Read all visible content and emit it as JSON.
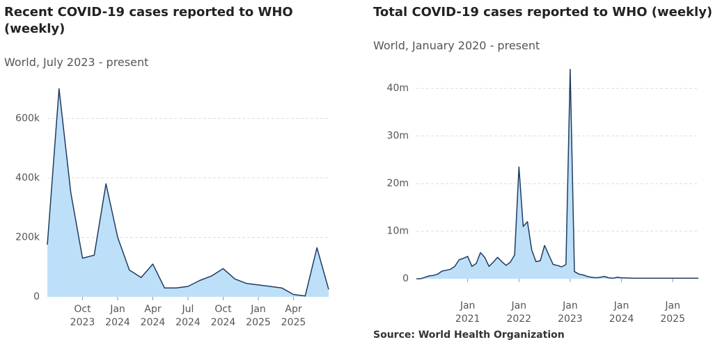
{
  "chart_data": [
    {
      "type": "area",
      "title": "Recent COVID-19 cases reported to WHO (weekly)",
      "subtitle": "World, July 2023 - present",
      "x": [
        "2023-07",
        "2023-08",
        "2023-09",
        "2023-10",
        "2023-11",
        "2023-12",
        "2024-01",
        "2024-02",
        "2024-03",
        "2024-04",
        "2024-05",
        "2024-06",
        "2024-07",
        "2024-08",
        "2024-09",
        "2024-10",
        "2024-11",
        "2024-12",
        "2025-01",
        "2025-02",
        "2025-03",
        "2025-04",
        "2025-05",
        "2025-06",
        "2025-07"
      ],
      "values": [
        175000,
        700000,
        350000,
        130000,
        140000,
        380000,
        200000,
        90000,
        65000,
        110000,
        30000,
        30000,
        35000,
        55000,
        70000,
        95000,
        60000,
        45000,
        40000,
        35000,
        30000,
        8000,
        3000,
        165000,
        25000
      ],
      "color": "#1f3a5f",
      "fill": "#bde0f8",
      "xlim": [
        "2023-07",
        "2025-07"
      ],
      "xticks": [
        {
          "value": "2023-10",
          "label": "Oct 2023"
        },
        {
          "value": "2024-01",
          "label": "Jan 2024"
        },
        {
          "value": "2024-04",
          "label": "Apr 2024"
        },
        {
          "value": "2024-07",
          "label": "Jul 2024"
        },
        {
          "value": "2024-10",
          "label": "Oct 2024"
        },
        {
          "value": "2025-01",
          "label": "Jan 2025"
        },
        {
          "value": "2025-04",
          "label": "Apr 2025"
        }
      ],
      "ylim": [
        0,
        720000
      ],
      "yticks": [
        0,
        {
          "value": 200000,
          "label": "200k"
        },
        {
          "value": 400000,
          "label": "400k"
        },
        {
          "value": 600000,
          "label": "600k"
        }
      ],
      "grid": true
    },
    {
      "type": "area",
      "title": "Total COVID-19 cases reported to WHO (weekly)",
      "subtitle": "World, January 2020 - present",
      "x": [
        "2020-01",
        "2020-02",
        "2020-03",
        "2020-04",
        "2020-05",
        "2020-06",
        "2020-07",
        "2020-08",
        "2020-09",
        "2020-10",
        "2020-11",
        "2020-12",
        "2021-01",
        "2021-02",
        "2021-03",
        "2021-04",
        "2021-05",
        "2021-06",
        "2021-07",
        "2021-08",
        "2021-09",
        "2021-10",
        "2021-11",
        "2021-12",
        "2022-01",
        "2022-02",
        "2022-03",
        "2022-04",
        "2022-05",
        "2022-06",
        "2022-07",
        "2022-08",
        "2022-09",
        "2022-10",
        "2022-11",
        "2022-12",
        "2023-01",
        "2023-02",
        "2023-03",
        "2023-04",
        "2023-05",
        "2023-06",
        "2023-07",
        "2023-08",
        "2023-09",
        "2023-10",
        "2023-11",
        "2023-12",
        "2024-01",
        "2024-04",
        "2024-07",
        "2024-10",
        "2025-01",
        "2025-04",
        "2025-07"
      ],
      "values": [
        0,
        0,
        300000,
        600000,
        700000,
        1000000,
        1600000,
        1800000,
        2000000,
        2600000,
        4000000,
        4300000,
        4700000,
        2600000,
        3200000,
        5500000,
        4500000,
        2600000,
        3500000,
        4500000,
        3600000,
        2800000,
        3500000,
        5000000,
        23500000,
        11000000,
        12000000,
        6000000,
        3600000,
        3800000,
        7000000,
        5000000,
        3000000,
        2800000,
        2500000,
        3000000,
        44000000,
        1500000,
        1000000,
        800000,
        500000,
        300000,
        200000,
        300000,
        500000,
        200000,
        100000,
        300000,
        200000,
        100000,
        100000,
        100000,
        100000,
        100000,
        100000
      ],
      "color": "#1f3a5f",
      "fill": "#bde0f8",
      "xlim": [
        "2020-01",
        "2025-07"
      ],
      "xticks": [
        {
          "value": "2021-01",
          "label": "Jan 2021"
        },
        {
          "value": "2022-01",
          "label": "Jan 2022"
        },
        {
          "value": "2023-01",
          "label": "Jan 2023"
        },
        {
          "value": "2024-01",
          "label": "Jan 2024"
        },
        {
          "value": "2025-01",
          "label": "Jan 2025"
        }
      ],
      "ylim": [
        0,
        45000000
      ],
      "yticks": [
        0,
        {
          "value": 10000000,
          "label": "10m"
        },
        {
          "value": 20000000,
          "label": "20m"
        },
        {
          "value": 30000000,
          "label": "30m"
        },
        {
          "value": 40000000,
          "label": "40m"
        }
      ],
      "grid": true
    }
  ],
  "source": "Source: World Health Organization"
}
